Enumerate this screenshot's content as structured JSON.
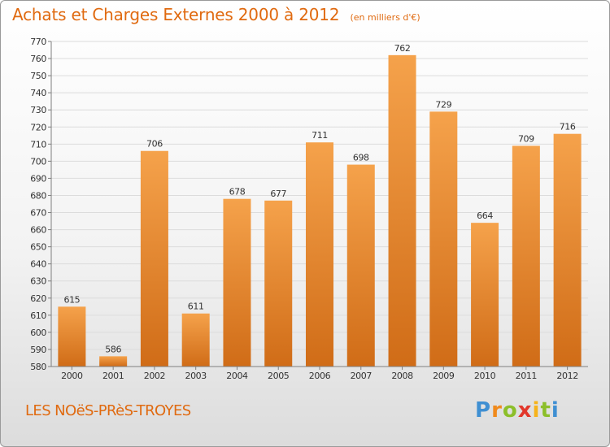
{
  "header": {
    "title": "Achats et Charges Externes 2000 à 2012",
    "subtitle": "(en milliers d'€)"
  },
  "footer": {
    "place": "LES NOëS-PRèS-TROYES",
    "logo": [
      "P",
      "r",
      "o",
      "x",
      "i",
      "t",
      "i"
    ]
  },
  "colors": {
    "title": "#e06a10",
    "bar_top": "#f5a24b",
    "bar_bottom": "#d06c17"
  },
  "chart_data": {
    "type": "bar",
    "title": "Achats et Charges Externes 2000 à 2012",
    "subtitle": "(en milliers d'€)",
    "categories": [
      "2000",
      "2001",
      "2002",
      "2003",
      "2004",
      "2005",
      "2006",
      "2007",
      "2008",
      "2009",
      "2010",
      "2011",
      "2012"
    ],
    "values": [
      615,
      586,
      706,
      611,
      678,
      677,
      711,
      698,
      762,
      729,
      664,
      709,
      716
    ],
    "ylim": [
      580,
      770
    ],
    "yticks": [
      580,
      590,
      600,
      610,
      620,
      630,
      640,
      650,
      660,
      670,
      680,
      690,
      700,
      710,
      720,
      730,
      740,
      750,
      760,
      770
    ],
    "grid": true,
    "data_labels": true
  }
}
